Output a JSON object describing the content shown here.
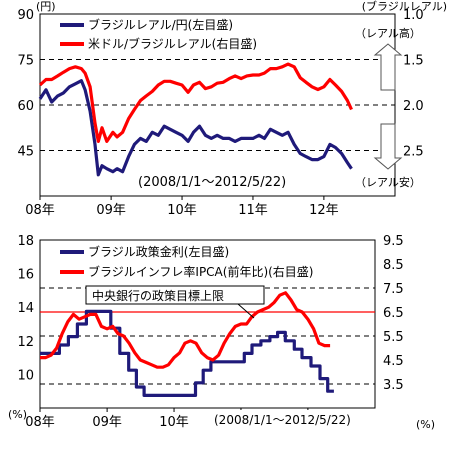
{
  "chart_data": [
    {
      "type": "line",
      "left_unit": "(円)",
      "right_unit": "(ブラジルレアル)",
      "x_ticks": [
        "08年",
        "09年",
        "10年",
        "11年",
        "12年"
      ],
      "x_range": [
        "2008-01-01",
        "2013-01-01"
      ],
      "left_ylim": [
        30,
        90
      ],
      "left_ticks": [
        45,
        60,
        75,
        90
      ],
      "right_ylim": [
        1.0,
        3.0
      ],
      "right_ticks": [
        1.0,
        1.5,
        2.0,
        2.5
      ],
      "right_axis_inverted": true,
      "gridlines_left": [
        45,
        60,
        75
      ],
      "annotations": {
        "period": "(2008/1/1～2012/5/22)",
        "real_up": "（レアル高）",
        "real_down": "（レアル安）"
      },
      "colors": {
        "blue": "#1f1a7a",
        "red": "#ff0000"
      },
      "series": [
        {
          "name": "ブラジルレアル/円(左目盛)",
          "axis": "left",
          "color": "#1f1a7a",
          "points": [
            [
              "2008-01-01",
              62
            ],
            [
              "2008-02-01",
              65
            ],
            [
              "2008-03-01",
              61
            ],
            [
              "2008-04-01",
              63
            ],
            [
              "2008-05-01",
              64
            ],
            [
              "2008-06-01",
              66
            ],
            [
              "2008-07-01",
              67
            ],
            [
              "2008-08-01",
              68
            ],
            [
              "2008-08-20",
              65
            ],
            [
              "2008-09-15",
              58
            ],
            [
              "2008-10-10",
              47
            ],
            [
              "2008-10-27",
              37
            ],
            [
              "2008-11-15",
              40
            ],
            [
              "2008-12-10",
              39
            ],
            [
              "2009-01-10",
              38
            ],
            [
              "2009-02-01",
              39
            ],
            [
              "2009-03-01",
              38
            ],
            [
              "2009-04-01",
              43
            ],
            [
              "2009-05-01",
              47
            ],
            [
              "2009-06-01",
              49
            ],
            [
              "2009-07-01",
              48
            ],
            [
              "2009-08-01",
              51
            ],
            [
              "2009-09-01",
              50
            ],
            [
              "2009-10-01",
              53
            ],
            [
              "2009-11-01",
              52
            ],
            [
              "2009-12-01",
              51
            ],
            [
              "2010-01-01",
              50
            ],
            [
              "2010-02-01",
              48
            ],
            [
              "2010-03-01",
              51
            ],
            [
              "2010-04-01",
              53
            ],
            [
              "2010-05-01",
              50
            ],
            [
              "2010-06-01",
              49
            ],
            [
              "2010-07-01",
              50
            ],
            [
              "2010-08-01",
              49
            ],
            [
              "2010-09-01",
              49
            ],
            [
              "2010-10-01",
              48
            ],
            [
              "2010-11-01",
              49
            ],
            [
              "2010-12-01",
              49
            ],
            [
              "2011-01-01",
              49
            ],
            [
              "2011-02-01",
              50
            ],
            [
              "2011-03-01",
              49
            ],
            [
              "2011-04-01",
              52
            ],
            [
              "2011-05-01",
              51
            ],
            [
              "2011-06-01",
              50
            ],
            [
              "2011-07-01",
              51
            ],
            [
              "2011-08-01",
              47
            ],
            [
              "2011-09-01",
              44
            ],
            [
              "2011-10-01",
              43
            ],
            [
              "2011-11-01",
              42
            ],
            [
              "2011-12-01",
              42
            ],
            [
              "2012-01-01",
              43
            ],
            [
              "2012-02-01",
              47
            ],
            [
              "2012-03-01",
              46
            ],
            [
              "2012-04-01",
              44
            ],
            [
              "2012-05-01",
              41
            ],
            [
              "2012-05-22",
              39
            ]
          ]
        },
        {
          "name": "米ドル/ブラジルレアル(右目盛)",
          "axis": "right",
          "color": "#ff0000",
          "points": [
            [
              "2008-01-01",
              1.78
            ],
            [
              "2008-02-01",
              1.72
            ],
            [
              "2008-03-01",
              1.72
            ],
            [
              "2008-04-01",
              1.68
            ],
            [
              "2008-05-01",
              1.64
            ],
            [
              "2008-06-01",
              1.6
            ],
            [
              "2008-07-01",
              1.58
            ],
            [
              "2008-08-01",
              1.6
            ],
            [
              "2008-08-20",
              1.65
            ],
            [
              "2008-09-15",
              1.8
            ],
            [
              "2008-10-10",
              2.2
            ],
            [
              "2008-10-27",
              2.4
            ],
            [
              "2008-11-15",
              2.25
            ],
            [
              "2008-12-10",
              2.4
            ],
            [
              "2009-01-10",
              2.3
            ],
            [
              "2009-02-01",
              2.35
            ],
            [
              "2009-03-01",
              2.3
            ],
            [
              "2009-04-01",
              2.15
            ],
            [
              "2009-05-01",
              2.05
            ],
            [
              "2009-06-01",
              1.95
            ],
            [
              "2009-07-01",
              1.9
            ],
            [
              "2009-08-01",
              1.85
            ],
            [
              "2009-09-01",
              1.78
            ],
            [
              "2009-10-01",
              1.74
            ],
            [
              "2009-11-01",
              1.74
            ],
            [
              "2009-12-01",
              1.76
            ],
            [
              "2010-01-01",
              1.78
            ],
            [
              "2010-02-01",
              1.86
            ],
            [
              "2010-03-01",
              1.78
            ],
            [
              "2010-04-01",
              1.75
            ],
            [
              "2010-05-01",
              1.82
            ],
            [
              "2010-06-01",
              1.8
            ],
            [
              "2010-07-01",
              1.76
            ],
            [
              "2010-08-01",
              1.75
            ],
            [
              "2010-09-01",
              1.71
            ],
            [
              "2010-10-01",
              1.68
            ],
            [
              "2010-11-01",
              1.71
            ],
            [
              "2010-12-01",
              1.68
            ],
            [
              "2011-01-01",
              1.67
            ],
            [
              "2011-02-01",
              1.67
            ],
            [
              "2011-03-01",
              1.65
            ],
            [
              "2011-04-01",
              1.6
            ],
            [
              "2011-05-01",
              1.6
            ],
            [
              "2011-06-01",
              1.58
            ],
            [
              "2011-07-01",
              1.55
            ],
            [
              "2011-08-01",
              1.58
            ],
            [
              "2011-09-01",
              1.7
            ],
            [
              "2011-10-01",
              1.75
            ],
            [
              "2011-11-01",
              1.8
            ],
            [
              "2011-12-01",
              1.83
            ],
            [
              "2012-01-01",
              1.8
            ],
            [
              "2012-02-01",
              1.72
            ],
            [
              "2012-03-01",
              1.78
            ],
            [
              "2012-04-01",
              1.85
            ],
            [
              "2012-05-01",
              1.95
            ],
            [
              "2012-05-22",
              2.05
            ]
          ]
        }
      ]
    },
    {
      "type": "line",
      "left_unit": "(%)",
      "right_unit": "(%)",
      "x_ticks": [
        "08年",
        "09年",
        "10年",
        "11年",
        "12年"
      ],
      "x_range": [
        "2008-01-01",
        "2013-01-01"
      ],
      "left_ylim": [
        8,
        18
      ],
      "left_ticks": [
        10,
        12,
        14,
        16,
        18
      ],
      "right_ylim": [
        2.5,
        9.5
      ],
      "right_ticks": [
        3.5,
        4.5,
        5.5,
        6.5,
        7.5,
        8.5,
        9.5
      ],
      "gridlines_right": [
        3.5,
        5.5,
        7.5
      ],
      "target_line": {
        "value": 6.5,
        "axis": "right",
        "label": "中央銀行の政策目標上限"
      },
      "annotations": {
        "period": "(2008/1/1～2012/5/22)"
      },
      "series": [
        {
          "name": "ブラジル政策金利(左目盛)",
          "axis": "left",
          "color": "#1f1a7a",
          "step": true,
          "points": [
            [
              "2008-01-01",
              11.25
            ],
            [
              "2008-04-16",
              11.75
            ],
            [
              "2008-06-04",
              12.25
            ],
            [
              "2008-07-23",
              13.0
            ],
            [
              "2008-09-10",
              13.75
            ],
            [
              "2009-01-21",
              12.75
            ],
            [
              "2009-03-11",
              11.25
            ],
            [
              "2009-04-29",
              10.25
            ],
            [
              "2009-06-10",
              9.25
            ],
            [
              "2009-07-22",
              8.75
            ],
            [
              "2010-04-28",
              9.5
            ],
            [
              "2010-06-09",
              10.25
            ],
            [
              "2010-07-21",
              10.75
            ],
            [
              "2011-01-19",
              11.25
            ],
            [
              "2011-03-02",
              11.75
            ],
            [
              "2011-04-20",
              12.0
            ],
            [
              "2011-06-08",
              12.25
            ],
            [
              "2011-07-20",
              12.5
            ],
            [
              "2011-08-31",
              12.0
            ],
            [
              "2011-10-19",
              11.5
            ],
            [
              "2011-11-30",
              11.0
            ],
            [
              "2012-01-18",
              10.5
            ],
            [
              "2012-03-07",
              9.75
            ],
            [
              "2012-04-18",
              9.0
            ],
            [
              "2012-05-22",
              9.0
            ]
          ]
        },
        {
          "name": "ブラジルインフレ率IPCA(前年比)(右目盛)",
          "axis": "right",
          "color": "#ff0000",
          "points": [
            [
              "2008-01-01",
              4.6
            ],
            [
              "2008-02-01",
              4.6
            ],
            [
              "2008-03-01",
              4.7
            ],
            [
              "2008-04-01",
              5.0
            ],
            [
              "2008-05-01",
              5.6
            ],
            [
              "2008-06-01",
              6.1
            ],
            [
              "2008-07-01",
              6.4
            ],
            [
              "2008-08-01",
              6.2
            ],
            [
              "2008-09-01",
              6.3
            ],
            [
              "2008-10-01",
              6.4
            ],
            [
              "2008-11-01",
              6.4
            ],
            [
              "2008-12-01",
              5.9
            ],
            [
              "2009-01-01",
              5.8
            ],
            [
              "2009-02-01",
              5.9
            ],
            [
              "2009-03-01",
              5.6
            ],
            [
              "2009-04-01",
              5.5
            ],
            [
              "2009-05-01",
              5.2
            ],
            [
              "2009-06-01",
              4.8
            ],
            [
              "2009-07-01",
              4.5
            ],
            [
              "2009-08-01",
              4.4
            ],
            [
              "2009-09-01",
              4.3
            ],
            [
              "2009-10-01",
              4.2
            ],
            [
              "2009-11-01",
              4.2
            ],
            [
              "2009-12-01",
              4.3
            ],
            [
              "2010-01-01",
              4.6
            ],
            [
              "2010-02-01",
              4.8
            ],
            [
              "2010-03-01",
              5.2
            ],
            [
              "2010-04-01",
              5.3
            ],
            [
              "2010-05-01",
              5.2
            ],
            [
              "2010-06-01",
              4.8
            ],
            [
              "2010-07-01",
              4.6
            ],
            [
              "2010-08-01",
              4.5
            ],
            [
              "2010-09-01",
              4.7
            ],
            [
              "2010-10-01",
              5.2
            ],
            [
              "2010-11-01",
              5.6
            ],
            [
              "2010-12-01",
              5.9
            ],
            [
              "2011-01-01",
              6.0
            ],
            [
              "2011-02-01",
              6.0
            ],
            [
              "2011-03-01",
              6.3
            ],
            [
              "2011-04-01",
              6.5
            ],
            [
              "2011-05-01",
              6.6
            ],
            [
              "2011-06-01",
              6.7
            ],
            [
              "2011-07-01",
              6.9
            ],
            [
              "2011-08-01",
              7.2
            ],
            [
              "2011-09-01",
              7.3
            ],
            [
              "2011-10-01",
              7.0
            ],
            [
              "2011-11-01",
              6.6
            ],
            [
              "2011-12-01",
              6.5
            ],
            [
              "2012-01-01",
              6.2
            ],
            [
              "2012-02-01",
              5.8
            ],
            [
              "2012-03-01",
              5.2
            ],
            [
              "2012-04-01",
              5.1
            ],
            [
              "2012-05-01",
              5.1
            ]
          ]
        }
      ]
    }
  ]
}
